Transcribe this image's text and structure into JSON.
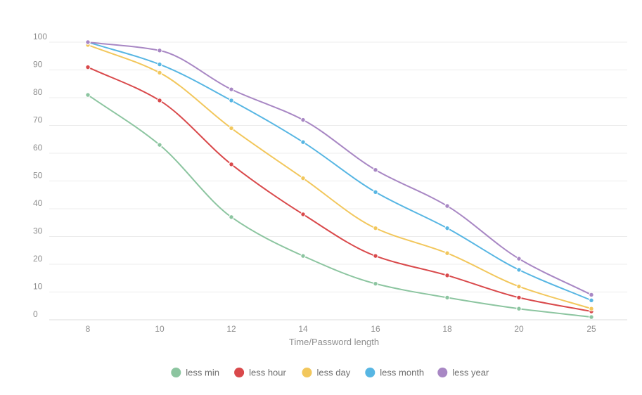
{
  "chart_data": {
    "type": "line",
    "title": "",
    "xlabel": "Time/Password length",
    "ylabel": "",
    "categories": [
      "8",
      "10",
      "12",
      "14",
      "16",
      "18",
      "20",
      "25"
    ],
    "y_ticks": [
      "0",
      "10",
      "20",
      "30",
      "40",
      "50",
      "60",
      "70",
      "80",
      "90",
      "100"
    ],
    "ylim": [
      0,
      100
    ],
    "grid": true,
    "legend_position": "bottom",
    "series": [
      {
        "name": "less min",
        "color": "#8cc5a0",
        "values": [
          81,
          63,
          37,
          23,
          13,
          8,
          4,
          1
        ]
      },
      {
        "name": "less hour",
        "color": "#d9494b",
        "values": [
          91,
          79,
          56,
          38,
          23,
          16,
          8,
          3
        ]
      },
      {
        "name": "less day",
        "color": "#f2c75c",
        "values": [
          99,
          89,
          69,
          51,
          33,
          24,
          12,
          4
        ]
      },
      {
        "name": "less month",
        "color": "#57b6e3",
        "values": [
          100,
          92,
          79,
          64,
          46,
          33,
          18,
          7
        ]
      },
      {
        "name": "less year",
        "color": "#a887c4",
        "values": [
          100,
          97,
          83,
          72,
          54,
          41,
          22,
          9
        ]
      }
    ]
  }
}
